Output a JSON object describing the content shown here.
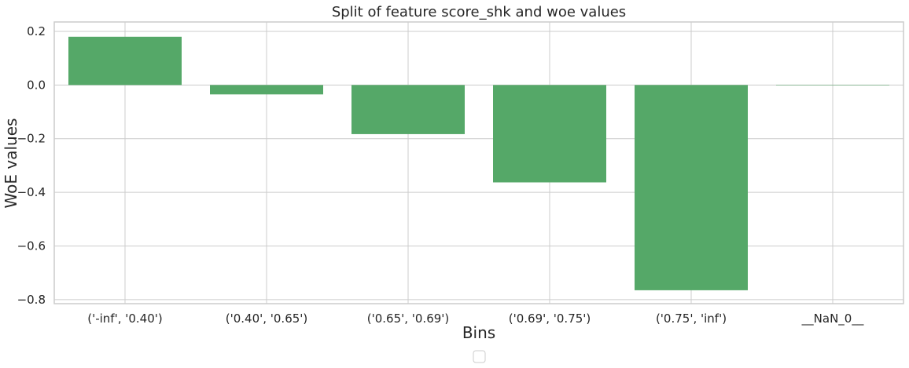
{
  "chart_data": {
    "type": "bar",
    "title": "Split of feature score_shk and woe values",
    "xlabel": "Bins",
    "ylabel": "WoE values",
    "categories": [
      "('-inf', '0.40')",
      "('0.40', '0.65')",
      "('0.65', '0.69')",
      "('0.69', '0.75')",
      "('0.75', 'inf')",
      "__NaN_0__"
    ],
    "values": [
      0.18,
      -0.035,
      -0.183,
      -0.363,
      -0.765,
      0.0
    ],
    "ylim": [
      -0.815,
      0.235
    ],
    "yticks": [
      -0.8,
      -0.6,
      -0.4,
      -0.2,
      0.0,
      0.2
    ],
    "ytick_labels": [
      "−0.8",
      "−0.6",
      "−0.4",
      "−0.2",
      "0.0",
      "0.2"
    ],
    "grid": true,
    "legend": "bottom-center (empty)",
    "colors": {
      "bar": "#55a868",
      "grid": "#cccccc",
      "frame": "#cccccc",
      "text": "#262626"
    }
  }
}
